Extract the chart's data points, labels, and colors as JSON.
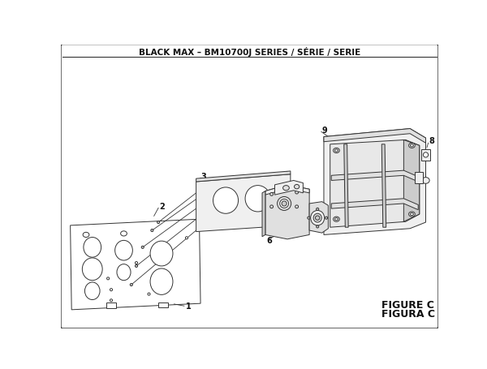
{
  "title": "BLACK MAX – BM10700J SERIES / SÉRIE / SERIE",
  "figure_label": "FIGURE C",
  "figura_label": "FIGURA C",
  "bg_color": "#ffffff",
  "lc": "#333333",
  "tc": "#111111",
  "lw": 0.7,
  "fill_light": "#f0f0f0",
  "fill_mid": "#e0e0e0",
  "fill_dark": "#cccccc"
}
